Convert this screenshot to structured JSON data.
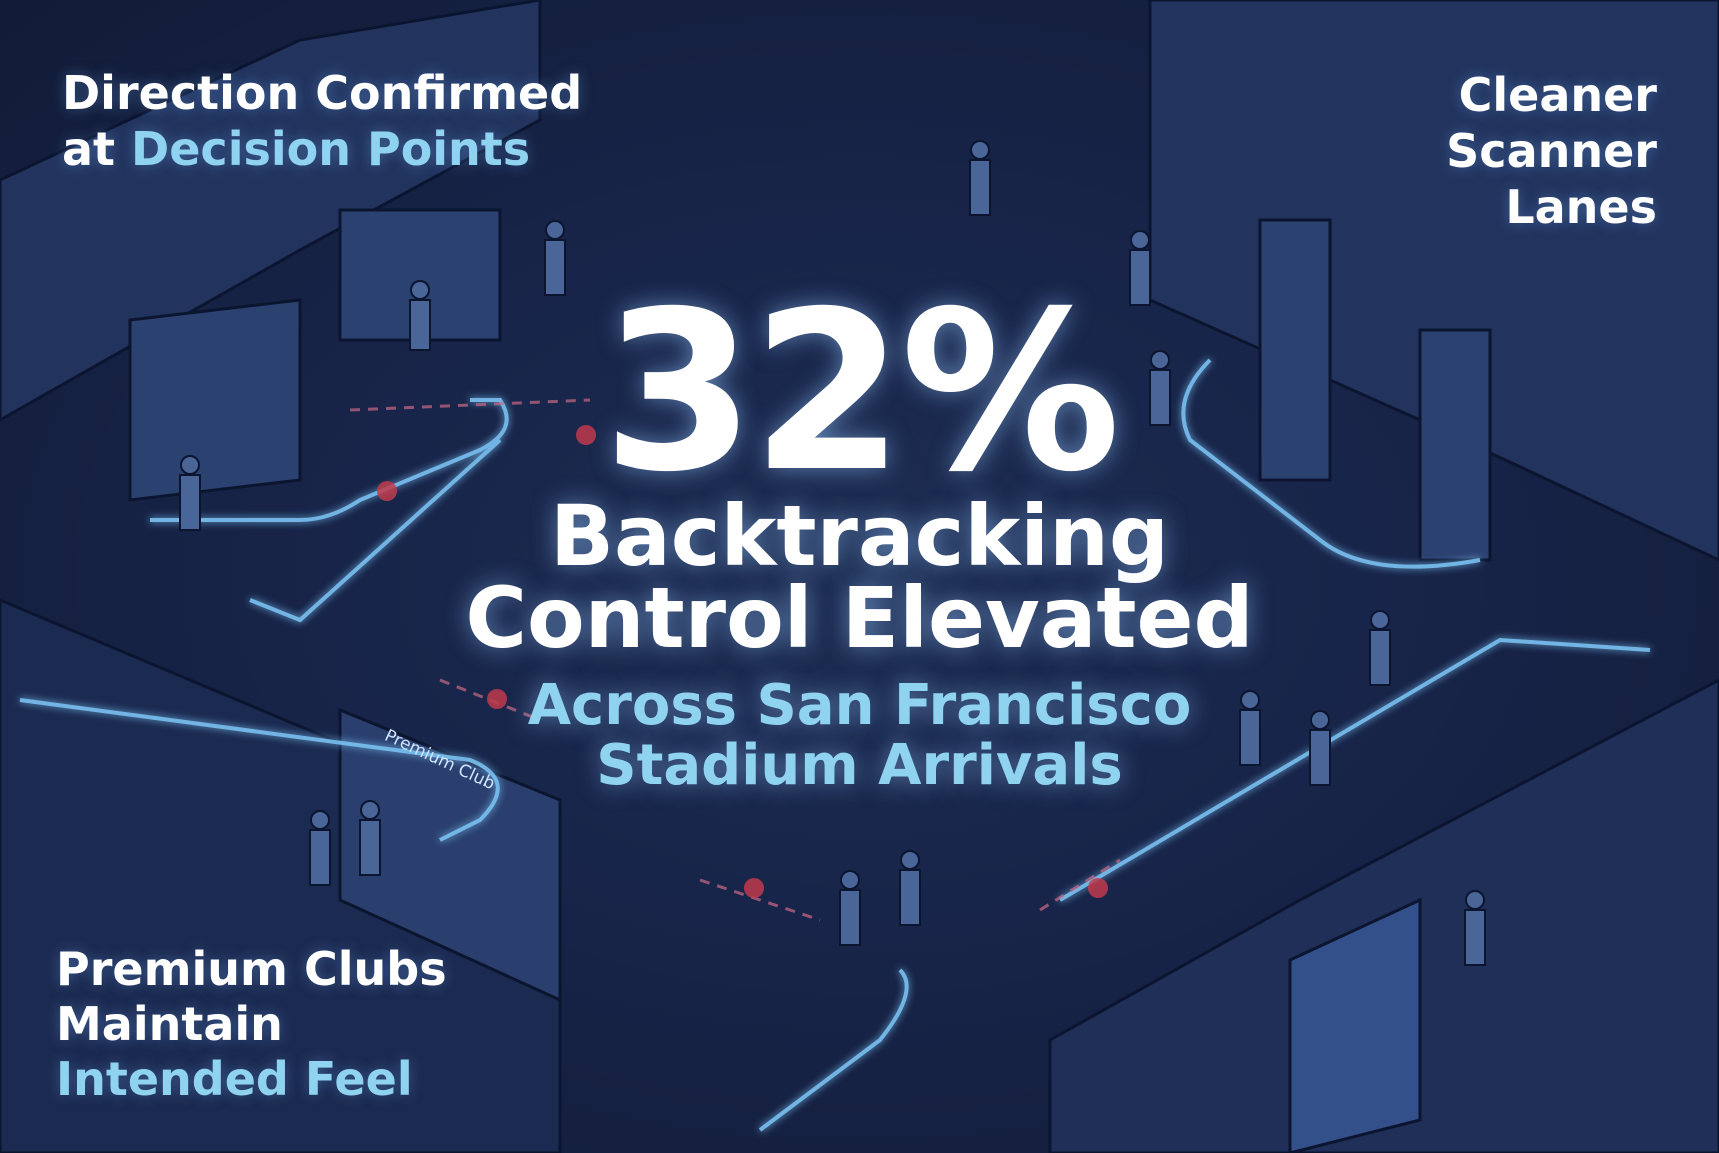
{
  "headline": {
    "stat": "32%",
    "line1": "Backtracking",
    "line2": "Control Elevated",
    "sub1": "Across San Francisco",
    "sub2": "Stadium Arrivals"
  },
  "callouts": {
    "top_left": {
      "line1": "Direction Confirmed",
      "line2_prefix": "at ",
      "line2_accent": "Decision Points"
    },
    "top_right": {
      "line1": "Cleaner",
      "line2": "Scanner",
      "line3": "Lanes"
    },
    "bottom_left": {
      "line1": "Premium Clubs",
      "line2": "Maintain",
      "line3_accent": "Intended Feel"
    }
  },
  "scene": {
    "club_sign": "Premium Club"
  },
  "colors": {
    "background": "#18254a",
    "accent": "#8fd3f0",
    "path_glow": "#7cc4f5",
    "blocked_marker": "#c0394b",
    "text": "#ffffff"
  }
}
